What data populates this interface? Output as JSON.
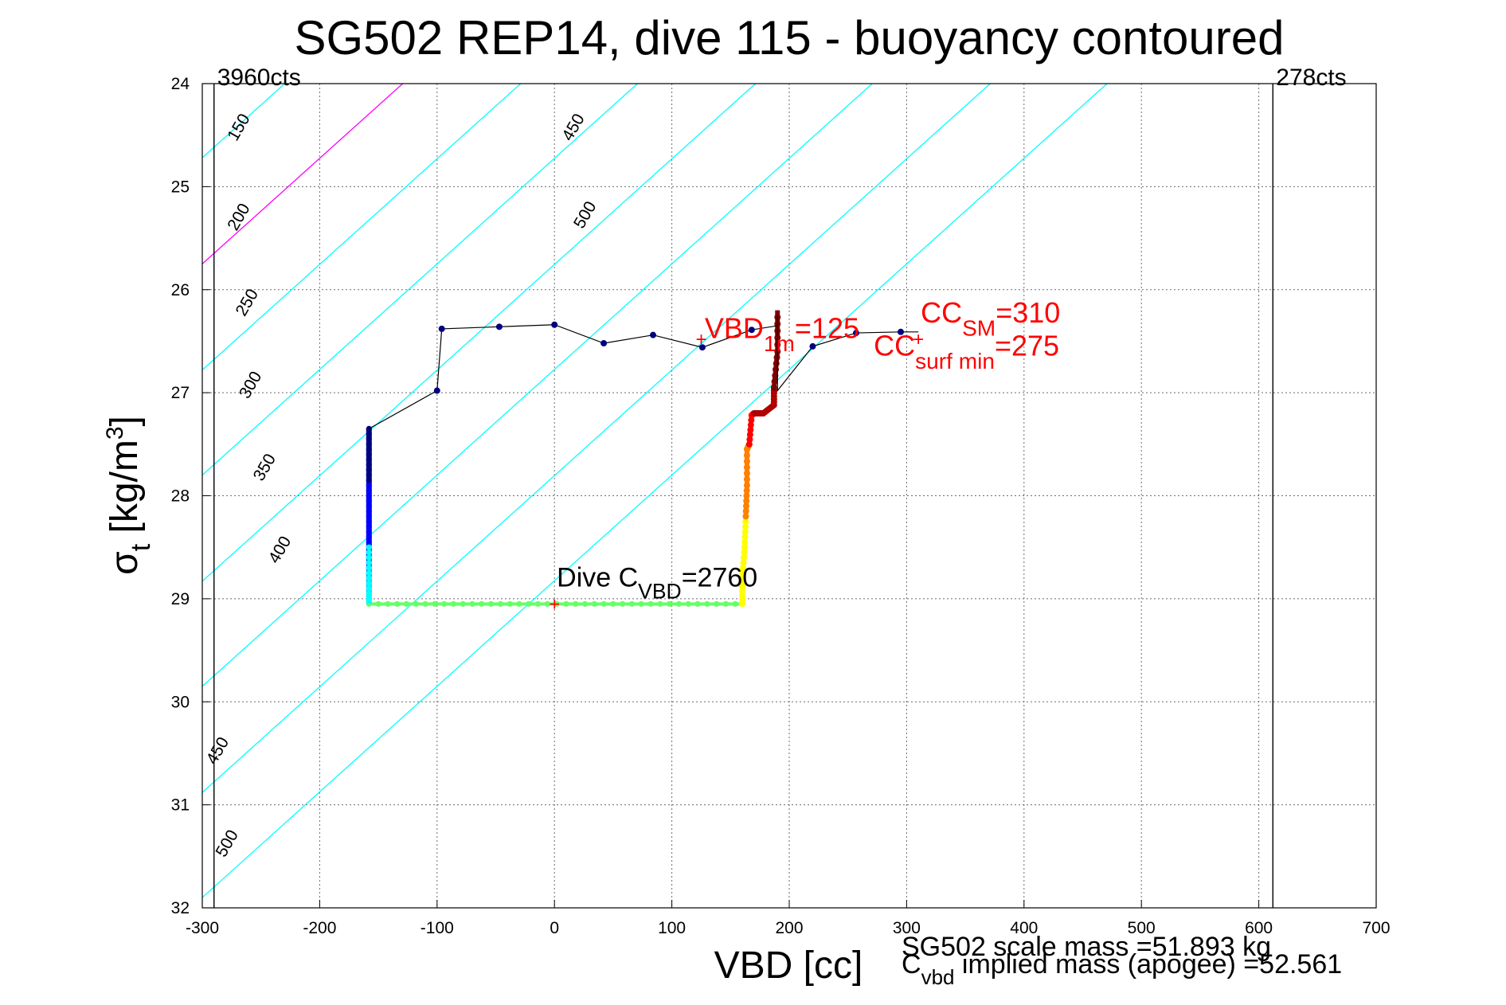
{
  "chart_data": {
    "type": "scatter",
    "title": "SG502 REP14, dive 115 - buoyancy contoured",
    "xlabel": "VBD [cc]",
    "ylabel": {
      "main": "σ",
      "sub": "t",
      "unit_pre": " [kg/m",
      "unit_sup": "3",
      "unit_post": "]"
    },
    "xlim": [
      -300,
      700
    ],
    "ylim": [
      24,
      32
    ],
    "y_reversed": true,
    "grid": true,
    "xticks": [
      -300,
      -200,
      -100,
      0,
      100,
      200,
      300,
      400,
      500,
      600,
      700
    ],
    "yticks": [
      24,
      25,
      26,
      27,
      28,
      29,
      30,
      31,
      32
    ],
    "counts_left": {
      "x": -290,
      "label": "3960cts"
    },
    "counts_right": {
      "x": 612,
      "label": "278cts"
    },
    "contours": [
      {
        "level": 150,
        "color": "#00ffff",
        "start": [
          -300,
          24.72
        ],
        "label_pos": [
          -265,
          24.45
        ]
      },
      {
        "level": 200,
        "color": "#ff00ff",
        "start": [
          -300,
          25.75
        ],
        "label_pos": [
          -265,
          25.32
        ]
      },
      {
        "level": 250,
        "color": "#00ffff",
        "start": [
          -300,
          26.78
        ],
        "label_pos": [
          -258,
          26.15
        ]
      },
      {
        "level": 300,
        "color": "#00ffff",
        "start": [
          -300,
          27.8
        ],
        "label_pos": [
          -255,
          26.95
        ]
      },
      {
        "level": 350,
        "color": "#00ffff",
        "start": [
          -300,
          28.83
        ],
        "label_pos": [
          -243,
          27.75
        ]
      },
      {
        "level": 400,
        "color": "#00ffff",
        "start": [
          -300,
          29.85
        ],
        "label_pos": [
          -230,
          28.55
        ]
      },
      {
        "level": 450,
        "color": "#00ffff",
        "start": [
          -300,
          30.88
        ],
        "label_pos": [
          -283,
          30.5
        ],
        "label_pos_2": [
          20,
          24.45
        ]
      },
      {
        "level": 500,
        "color": "#00ffff",
        "start": [
          -300,
          31.9
        ],
        "label_pos": [
          -275,
          31.4
        ],
        "label_pos_2": [
          30,
          25.3
        ]
      }
    ],
    "contour_slope_sigma_per_cc": 0.01025,
    "black_trace": {
      "x": [
        -158,
        -158,
        -100,
        -96,
        -47,
        0,
        42,
        84,
        126,
        168,
        190,
        190,
        190,
        220,
        257,
        295,
        310
      ],
      "y": [
        27.35,
        27.35,
        26.98,
        26.38,
        26.36,
        26.34,
        26.52,
        26.44,
        26.56,
        26.39,
        26.35,
        26.25,
        26.98,
        26.55,
        26.42,
        26.41,
        26.41
      ]
    },
    "surface_points": {
      "x": [
        -96,
        -47,
        0,
        42,
        84,
        126,
        168,
        220,
        257,
        295
      ],
      "y": [
        26.38,
        26.36,
        26.34,
        26.52,
        26.44,
        26.56,
        26.39,
        26.55,
        26.42,
        26.41
      ]
    },
    "dive_colored_segment": {
      "x": -158,
      "y_start": 27.35,
      "y_end": 29.05,
      "colors": [
        "#00007f",
        "#0000ff",
        "#00ffff"
      ]
    },
    "bottom_segment": {
      "x_start": -158,
      "x_end": 160,
      "y": 29.05,
      "color": "#66ff66"
    },
    "climb_colored_segment": {
      "points_x": [
        160,
        160,
        162,
        163,
        164,
        164,
        166,
        168,
        170,
        178,
        187,
        187,
        190,
        190
      ],
      "points_y": [
        29.05,
        28.8,
        28.5,
        28.2,
        27.9,
        27.55,
        27.5,
        27.22,
        27.2,
        27.2,
        27.12,
        26.95,
        26.6,
        26.2
      ],
      "colors": [
        "#ffff00",
        "#ff8000",
        "#ff0000",
        "#b00000",
        "#7f0000"
      ]
    },
    "markers": [
      {
        "x": 0,
        "y": 29.05,
        "color": "#ff0000",
        "label": "+"
      },
      {
        "x": 125,
        "y": 26.48,
        "color": "#ff0000",
        "label": "+"
      },
      {
        "x": 310,
        "y": 26.48,
        "color": "#ff0000",
        "label": "+"
      }
    ],
    "annotations": {
      "dive_c_vbd": {
        "x": 2,
        "y": 28.88,
        "pre": "Dive C",
        "sub": "VBD",
        "post": "=2760"
      },
      "vbd_1m": {
        "x": 128,
        "y": 26.47,
        "pre": "VBD",
        "sub": "1m",
        "post": "=125"
      },
      "cc_sm": {
        "x": 312,
        "y": 26.32,
        "pre": "CC",
        "sub": "SM",
        "post": "=310"
      },
      "cc_surf_min": {
        "x": 272,
        "y": 26.64,
        "pre": "CC",
        "sub": "surf min",
        "post": "=275"
      }
    }
  },
  "footer": {
    "scale_mass": "SG502 scale mass =51.893 kg",
    "implied_mass_pre": "C",
    "implied_mass_sub": "vbd",
    "implied_mass_post": " implied mass (apogee) =52.561"
  }
}
